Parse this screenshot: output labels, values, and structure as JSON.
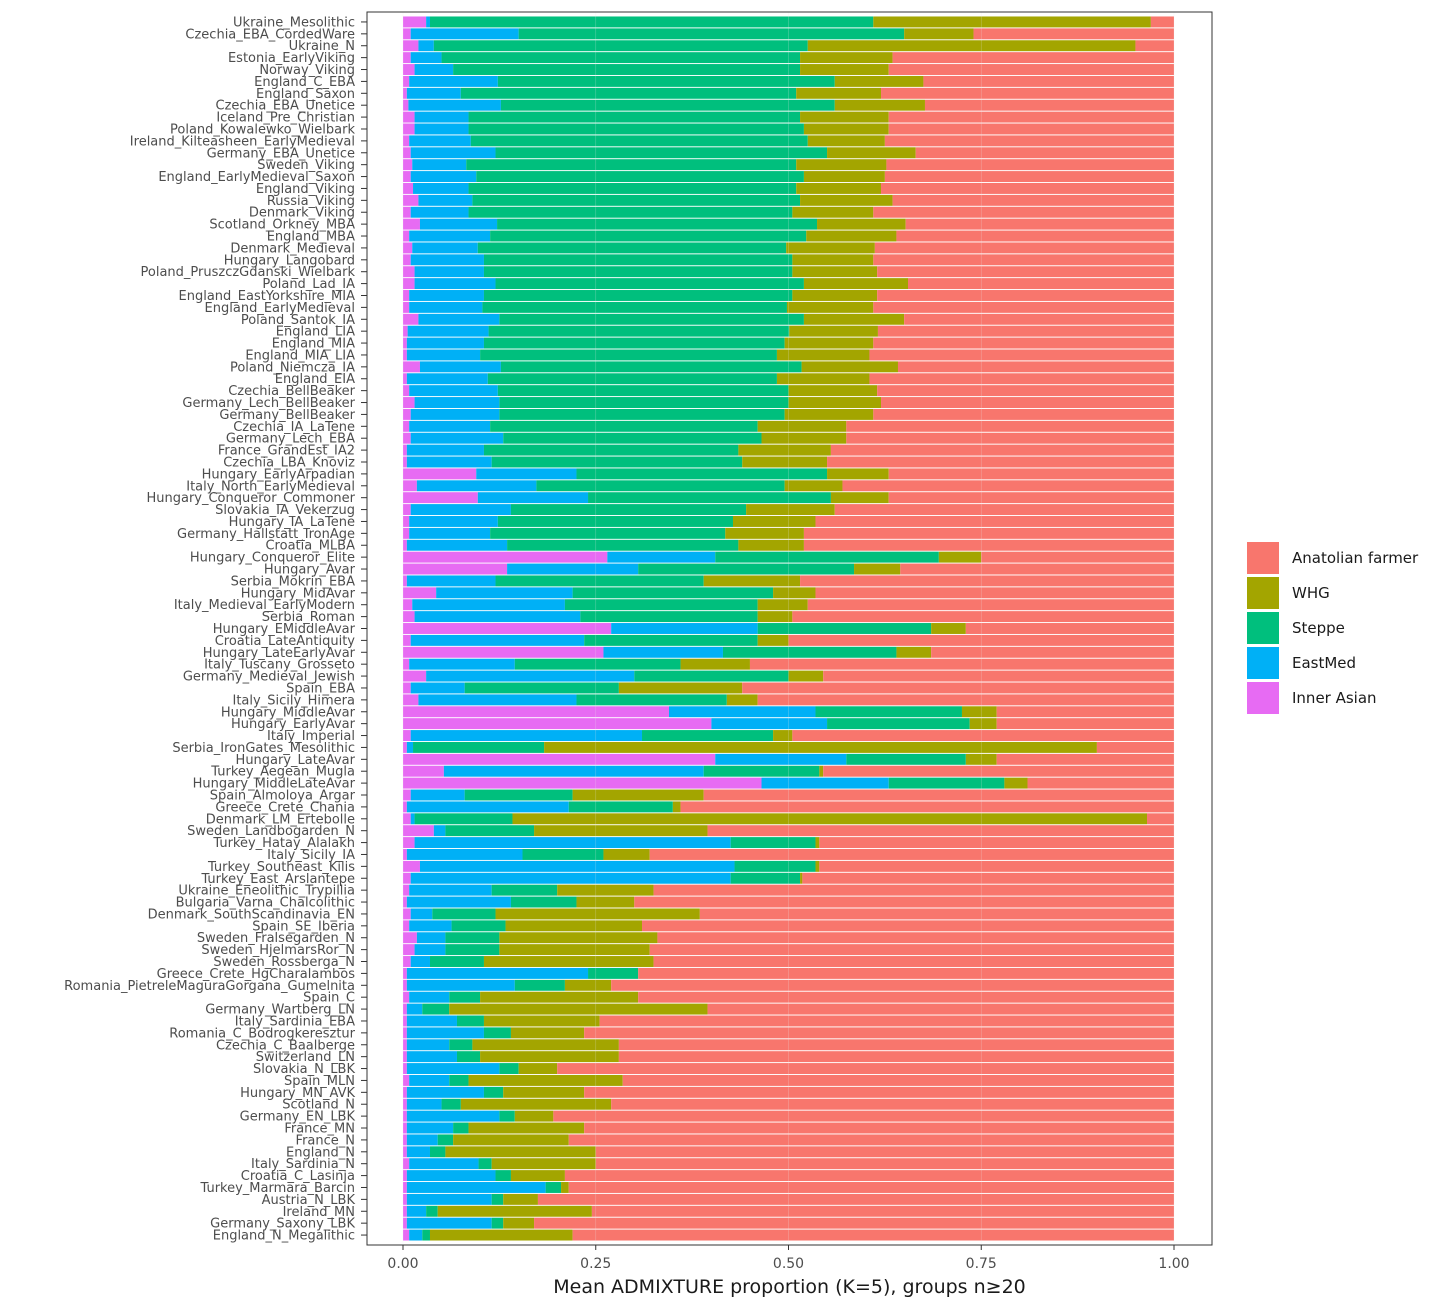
{
  "chart_data": {
    "type": "bar",
    "orientation": "horizontal",
    "stacked": true,
    "xlabel": "Mean ADMIXTURE proportion (K=5), groups n≥20",
    "ylabel": "",
    "xlim": [
      0,
      1
    ],
    "x_ticks": [
      "0.00",
      "0.25",
      "0.50",
      "0.75",
      "1.00"
    ],
    "legend_position": "right",
    "legend": [
      {
        "name": "Anatolian farmer",
        "color": "#F8766D"
      },
      {
        "name": "WHG",
        "color": "#A3A500"
      },
      {
        "name": "Steppe",
        "color": "#00BF7D"
      },
      {
        "name": "EastMed",
        "color": "#00B0F6"
      },
      {
        "name": "Inner Asian",
        "color": "#E76BF3"
      }
    ],
    "stack_order": [
      "Inner Asian",
      "EastMed",
      "Steppe",
      "WHG",
      "Anatolian farmer"
    ],
    "rows": [
      {
        "group": "Ukraine_Mesolithic",
        "values": [
          0.03,
          0.005,
          0.575,
          0.36,
          0.03
        ]
      },
      {
        "group": "Czechia_EBA_CordedWare",
        "values": [
          0.01,
          0.14,
          0.5,
          0.09,
          0.26
        ]
      },
      {
        "group": "Ukraine_N",
        "values": [
          0.02,
          0.02,
          0.485,
          0.425,
          0.05
        ]
      },
      {
        "group": "Estonia_EarlyViking",
        "values": [
          0.01,
          0.04,
          0.465,
          0.12,
          0.365
        ]
      },
      {
        "group": "Norway_Viking",
        "values": [
          0.015,
          0.05,
          0.45,
          0.115,
          0.37
        ]
      },
      {
        "group": "England_C_EBA",
        "values": [
          0.008,
          0.115,
          0.437,
          0.115,
          0.325
        ]
      },
      {
        "group": "England_Saxon",
        "values": [
          0.005,
          0.07,
          0.435,
          0.11,
          0.38
        ]
      },
      {
        "group": "Czechia_EBA_Unetice",
        "values": [
          0.007,
          0.12,
          0.433,
          0.117,
          0.323
        ]
      },
      {
        "group": "Iceland_Pre_Christian",
        "values": [
          0.015,
          0.07,
          0.43,
          0.115,
          0.37
        ]
      },
      {
        "group": "Poland_Kowalewko_Wielbark",
        "values": [
          0.015,
          0.07,
          0.435,
          0.11,
          0.37
        ]
      },
      {
        "group": "Ireland_Kilteasheen_EarlyMedieval",
        "values": [
          0.008,
          0.08,
          0.437,
          0.1,
          0.375
        ]
      },
      {
        "group": "Germany_EBA_Unetice",
        "values": [
          0.01,
          0.11,
          0.43,
          0.115,
          0.335
        ]
      },
      {
        "group": "Sweden_Viking",
        "values": [
          0.012,
          0.07,
          0.428,
          0.117,
          0.373
        ]
      },
      {
        "group": "England_EarlyMedieval_Saxon",
        "values": [
          0.01,
          0.085,
          0.425,
          0.105,
          0.375
        ]
      },
      {
        "group": "England_Viking",
        "values": [
          0.013,
          0.072,
          0.425,
          0.11,
          0.38
        ]
      },
      {
        "group": "Russia_Viking",
        "values": [
          0.02,
          0.07,
          0.425,
          0.12,
          0.365
        ]
      },
      {
        "group": "Denmark_Viking",
        "values": [
          0.01,
          0.075,
          0.42,
          0.105,
          0.39
        ]
      },
      {
        "group": "Scotland_Orkney_MBA",
        "values": [
          0.022,
          0.1,
          0.415,
          0.115,
          0.348
        ]
      },
      {
        "group": "England_MBA",
        "values": [
          0.008,
          0.105,
          0.41,
          0.117,
          0.36
        ]
      },
      {
        "group": "Denmark_Medieval",
        "values": [
          0.012,
          0.085,
          0.4,
          0.115,
          0.388
        ]
      },
      {
        "group": "Hungary_Langobard",
        "values": [
          0.01,
          0.095,
          0.4,
          0.105,
          0.39
        ]
      },
      {
        "group": "Poland_PruszczGdanski_Wielbark",
        "values": [
          0.015,
          0.09,
          0.4,
          0.11,
          0.385
        ]
      },
      {
        "group": "Poland_Lad_IA",
        "values": [
          0.015,
          0.105,
          0.4,
          0.135,
          0.345
        ]
      },
      {
        "group": "England_EastYorkshire_MIA",
        "values": [
          0.008,
          0.097,
          0.4,
          0.11,
          0.385
        ]
      },
      {
        "group": "England_EarlyMedieval",
        "values": [
          0.008,
          0.095,
          0.395,
          0.112,
          0.39
        ]
      },
      {
        "group": "Poland_Santok_IA",
        "values": [
          0.02,
          0.105,
          0.395,
          0.13,
          0.35
        ]
      },
      {
        "group": "England_LIA",
        "values": [
          0.006,
          0.105,
          0.39,
          0.115,
          0.384
        ]
      },
      {
        "group": "England_MIA",
        "values": [
          0.005,
          0.1,
          0.39,
          0.115,
          0.39
        ]
      },
      {
        "group": "England_MIA_LIA",
        "values": [
          0.005,
          0.095,
          0.385,
          0.12,
          0.395
        ]
      },
      {
        "group": "Poland_Niemcza_IA",
        "values": [
          0.022,
          0.105,
          0.39,
          0.125,
          0.358
        ]
      },
      {
        "group": "England_EIA",
        "values": [
          0.005,
          0.105,
          0.375,
          0.12,
          0.395
        ]
      },
      {
        "group": "Czechia_BellBeaker",
        "values": [
          0.008,
          0.115,
          0.377,
          0.115,
          0.385
        ]
      },
      {
        "group": "Germany_Lech_BellBeaker",
        "values": [
          0.015,
          0.11,
          0.375,
          0.12,
          0.38
        ]
      },
      {
        "group": "Germany_BellBeaker",
        "values": [
          0.01,
          0.115,
          0.37,
          0.115,
          0.39
        ]
      },
      {
        "group": "Czechia_IA_LaTene",
        "values": [
          0.008,
          0.105,
          0.347,
          0.115,
          0.425
        ]
      },
      {
        "group": "Germany_Lech_EBA",
        "values": [
          0.01,
          0.12,
          0.335,
          0.11,
          0.425
        ]
      },
      {
        "group": "France_GrandEst_IA2",
        "values": [
          0.005,
          0.1,
          0.33,
          0.12,
          0.445
        ]
      },
      {
        "group": "Czechia_LBA_Knoviz",
        "values": [
          0.005,
          0.11,
          0.325,
          0.11,
          0.45
        ]
      },
      {
        "group": "Hungary_EarlyArpadian",
        "values": [
          0.095,
          0.13,
          0.325,
          0.08,
          0.37
        ]
      },
      {
        "group": "Italy_North_EarlyMedieval",
        "values": [
          0.018,
          0.155,
          0.322,
          0.075,
          0.43
        ]
      },
      {
        "group": "Hungary_Conqueror_Commoner",
        "values": [
          0.097,
          0.143,
          0.315,
          0.075,
          0.37
        ]
      },
      {
        "group": "Slovakia_IA_Vekerzug",
        "values": [
          0.01,
          0.13,
          0.305,
          0.115,
          0.44
        ]
      },
      {
        "group": "Hungary_IA_LaTene",
        "values": [
          0.008,
          0.115,
          0.305,
          0.107,
          0.465
        ]
      },
      {
        "group": "Germany_Hallstatt_IronAge",
        "values": [
          0.008,
          0.105,
          0.305,
          0.102,
          0.48
        ]
      },
      {
        "group": "Croatia_MLBA",
        "values": [
          0.005,
          0.13,
          0.3,
          0.085,
          0.48
        ]
      },
      {
        "group": "Hungary_Conqueror_Elite",
        "values": [
          0.265,
          0.14,
          0.29,
          0.055,
          0.25
        ]
      },
      {
        "group": "Hungary_Avar",
        "values": [
          0.135,
          0.17,
          0.28,
          0.06,
          0.355
        ]
      },
      {
        "group": "Serbia_Mokrin_EBA",
        "values": [
          0.005,
          0.115,
          0.27,
          0.125,
          0.485
        ]
      },
      {
        "group": "Hungary_MidAvar",
        "values": [
          0.043,
          0.177,
          0.26,
          0.055,
          0.465
        ]
      },
      {
        "group": "Italy_Medieval_EarlyModern",
        "values": [
          0.012,
          0.198,
          0.25,
          0.065,
          0.475
        ]
      },
      {
        "group": "Serbia_Roman",
        "values": [
          0.015,
          0.215,
          0.23,
          0.045,
          0.495
        ]
      },
      {
        "group": "Hungary_EMiddleAvar",
        "values": [
          0.27,
          0.19,
          0.225,
          0.045,
          0.27
        ]
      },
      {
        "group": "Croatia_LateAntiquity",
        "values": [
          0.01,
          0.225,
          0.225,
          0.04,
          0.5
        ]
      },
      {
        "group": "Hungary_LateEarlyAvar",
        "values": [
          0.26,
          0.155,
          0.225,
          0.045,
          0.315
        ]
      },
      {
        "group": "Italy_Tuscany_Grosseto",
        "values": [
          0.008,
          0.137,
          0.215,
          0.09,
          0.55
        ]
      },
      {
        "group": "Germany_Medieval_Jewish",
        "values": [
          0.03,
          0.27,
          0.2,
          0.045,
          0.455
        ]
      },
      {
        "group": "Spain_EBA",
        "values": [
          0.01,
          0.07,
          0.2,
          0.16,
          0.56
        ]
      },
      {
        "group": "Italy_Sicily_Himera",
        "values": [
          0.02,
          0.205,
          0.195,
          0.04,
          0.54
        ]
      },
      {
        "group": "Hungary_MiddleAvar",
        "values": [
          0.345,
          0.19,
          0.19,
          0.045,
          0.23
        ]
      },
      {
        "group": "Hungary_EarlyAvar",
        "values": [
          0.4,
          0.15,
          0.185,
          0.035,
          0.23
        ]
      },
      {
        "group": "Italy_Imperial",
        "values": [
          0.01,
          0.3,
          0.17,
          0.025,
          0.495
        ]
      },
      {
        "group": "Serbia_IronGates_Mesolithic",
        "values": [
          0.005,
          0.008,
          0.17,
          0.717,
          0.1
        ]
      },
      {
        "group": "Hungary_LateAvar",
        "values": [
          0.405,
          0.17,
          0.155,
          0.04,
          0.23
        ]
      },
      {
        "group": "Turkey_Aegean_Mugla",
        "values": [
          0.053,
          0.337,
          0.15,
          0.005,
          0.455
        ]
      },
      {
        "group": "Hungary_MiddleLateAvar",
        "values": [
          0.465,
          0.165,
          0.15,
          0.03,
          0.19
        ]
      },
      {
        "group": "Spain_Almoloya_Argar",
        "values": [
          0.01,
          0.07,
          0.14,
          0.17,
          0.61
        ]
      },
      {
        "group": "Greece_Crete_Chania",
        "values": [
          0.005,
          0.21,
          0.135,
          0.01,
          0.64
        ]
      },
      {
        "group": "Denmark_LM_Ertebolle",
        "values": [
          0.01,
          0.005,
          0.127,
          0.823,
          0.035
        ]
      },
      {
        "group": "Sweden_Landbogarden_N",
        "values": [
          0.04,
          0.015,
          0.115,
          0.225,
          0.605
        ]
      },
      {
        "group": "Turkey_Hatay_Alalakh",
        "values": [
          0.015,
          0.41,
          0.11,
          0.005,
          0.46
        ]
      },
      {
        "group": "Italy_Sicily_IA",
        "values": [
          0.005,
          0.15,
          0.105,
          0.06,
          0.68
        ]
      },
      {
        "group": "Turkey_Southeast_Kilis",
        "values": [
          0.022,
          0.408,
          0.105,
          0.005,
          0.46
        ]
      },
      {
        "group": "Turkey_East_Arslantepe",
        "values": [
          0.01,
          0.415,
          0.09,
          0.003,
          0.482
        ]
      },
      {
        "group": "Ukraine_Eneolithic_Trypillia",
        "values": [
          0.008,
          0.107,
          0.085,
          0.125,
          0.675
        ]
      },
      {
        "group": "Bulgaria_Varna_Chalcolithic",
        "values": [
          0.005,
          0.135,
          0.085,
          0.075,
          0.7
        ]
      },
      {
        "group": "Denmark_SouthScandinavia_EN",
        "values": [
          0.01,
          0.028,
          0.082,
          0.265,
          0.615
        ]
      },
      {
        "group": "Spain_SE_Iberia",
        "values": [
          0.008,
          0.055,
          0.07,
          0.177,
          0.69
        ]
      },
      {
        "group": "Sweden_Fralsegarden_N",
        "values": [
          0.018,
          0.037,
          0.07,
          0.205,
          0.67
        ]
      },
      {
        "group": "Sweden_HjelmarsRor_N",
        "values": [
          0.015,
          0.04,
          0.07,
          0.195,
          0.68
        ]
      },
      {
        "group": "Sweden_Rossberga_N",
        "values": [
          0.01,
          0.025,
          0.07,
          0.22,
          0.675
        ]
      },
      {
        "group": "Greece_Crete_HgCharalambos",
        "values": [
          0.005,
          0.235,
          0.065,
          0.0,
          0.695
        ]
      },
      {
        "group": "Romania_PietreleMaguraGorgana_Gumelnita",
        "values": [
          0.005,
          0.14,
          0.065,
          0.06,
          0.73
        ]
      },
      {
        "group": "Spain_C",
        "values": [
          0.008,
          0.052,
          0.04,
          0.205,
          0.695
        ]
      },
      {
        "group": "Germany_Wartberg_LN",
        "values": [
          0.005,
          0.02,
          0.035,
          0.335,
          0.605
        ]
      },
      {
        "group": "Italy_Sardinia_EBA",
        "values": [
          0.005,
          0.065,
          0.035,
          0.15,
          0.745
        ]
      },
      {
        "group": "Romania_C_Bodrogkeresztur",
        "values": [
          0.005,
          0.1,
          0.035,
          0.095,
          0.765
        ]
      },
      {
        "group": "Czechia_C_Baalberge",
        "values": [
          0.005,
          0.055,
          0.03,
          0.19,
          0.72
        ]
      },
      {
        "group": "Switzerland_LN",
        "values": [
          0.005,
          0.065,
          0.03,
          0.18,
          0.72
        ]
      },
      {
        "group": "Slovakia_N_LBK",
        "values": [
          0.005,
          0.12,
          0.025,
          0.05,
          0.8
        ]
      },
      {
        "group": "Spain_MLN",
        "values": [
          0.008,
          0.052,
          0.025,
          0.2,
          0.715
        ]
      },
      {
        "group": "Hungary_MN_AVK",
        "values": [
          0.005,
          0.1,
          0.025,
          0.105,
          0.765
        ]
      },
      {
        "group": "Scotland_N",
        "values": [
          0.005,
          0.045,
          0.025,
          0.195,
          0.73
        ]
      },
      {
        "group": "Germany_EN_LBK",
        "values": [
          0.005,
          0.12,
          0.02,
          0.05,
          0.805
        ]
      },
      {
        "group": "France_MN",
        "values": [
          0.005,
          0.06,
          0.02,
          0.15,
          0.765
        ]
      },
      {
        "group": "France_N",
        "values": [
          0.005,
          0.04,
          0.02,
          0.15,
          0.785
        ]
      },
      {
        "group": "England_N",
        "values": [
          0.005,
          0.03,
          0.02,
          0.195,
          0.75
        ]
      },
      {
        "group": "Italy_Sardinia_N",
        "values": [
          0.008,
          0.09,
          0.017,
          0.135,
          0.75
        ]
      },
      {
        "group": "Croatia_C_Lasinja",
        "values": [
          0.005,
          0.115,
          0.02,
          0.07,
          0.79
        ]
      },
      {
        "group": "Turkey_Marmara_Barcin",
        "values": [
          0.005,
          0.18,
          0.02,
          0.01,
          0.785
        ]
      },
      {
        "group": "Austria_N_LBK",
        "values": [
          0.005,
          0.11,
          0.015,
          0.045,
          0.825
        ]
      },
      {
        "group": "Ireland_MN",
        "values": [
          0.005,
          0.025,
          0.015,
          0.2,
          0.755
        ]
      },
      {
        "group": "Germany_Saxony_LBK",
        "values": [
          0.005,
          0.11,
          0.015,
          0.04,
          0.83
        ]
      },
      {
        "group": "England_N_Megalithic",
        "values": [
          0.008,
          0.017,
          0.01,
          0.185,
          0.78
        ]
      }
    ]
  }
}
